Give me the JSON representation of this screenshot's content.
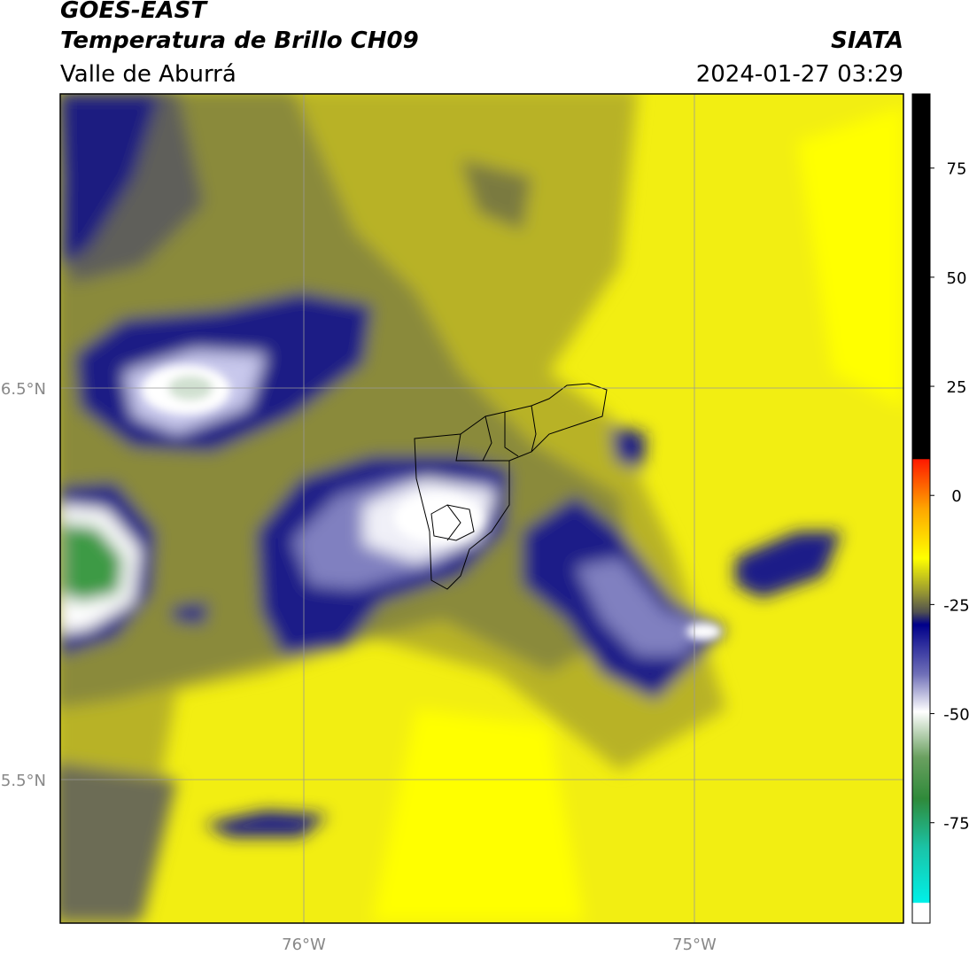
{
  "header": {
    "title": "GOES-EAST",
    "subtitle": "Temperatura de Brillo CH09",
    "region": "Valle de Aburrá",
    "source": "SIATA",
    "datetime": "2024-01-27 03:29"
  },
  "map": {
    "lat_labels": [
      "6.5°N",
      "5.5°N"
    ],
    "lon_labels": [
      "76°W",
      "75°W"
    ]
  },
  "colorbar": {
    "range": [
      -98,
      92
    ],
    "ticks": [
      75,
      50,
      25,
      0,
      -25,
      -50,
      -75
    ]
  }
}
